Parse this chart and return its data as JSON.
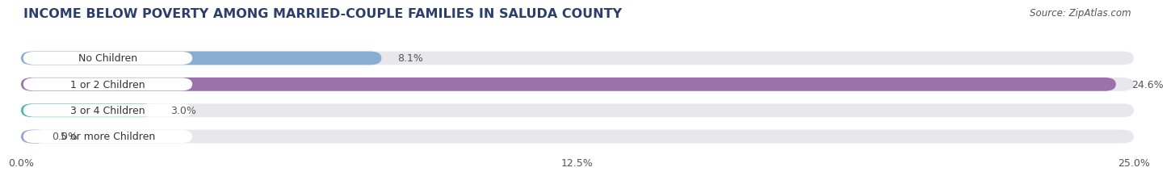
{
  "title": "INCOME BELOW POVERTY AMONG MARRIED-COUPLE FAMILIES IN SALUDA COUNTY",
  "source": "Source: ZipAtlas.com",
  "categories": [
    "No Children",
    "1 or 2 Children",
    "3 or 4 Children",
    "5 or more Children"
  ],
  "values": [
    8.1,
    24.6,
    3.0,
    0.0
  ],
  "bar_colors": [
    "#8aadd4",
    "#9b72aa",
    "#4db8b0",
    "#9b9fd4"
  ],
  "label_pill_colors": [
    "#8aadd4",
    "#9b72aa",
    "#4db8b0",
    "#9b9fd4"
  ],
  "background_color": "#ffffff",
  "bar_bg_color": "#e8e8ec",
  "xlim": [
    0,
    25.0
  ],
  "xtick_labels": [
    "0.0%",
    "12.5%",
    "25.0%"
  ],
  "title_fontsize": 11.5,
  "label_fontsize": 9,
  "value_fontsize": 9,
  "source_fontsize": 8.5,
  "title_color": "#2c3e6b",
  "label_text_color": "#333333",
  "value_text_color": "#555555",
  "source_color": "#555555"
}
